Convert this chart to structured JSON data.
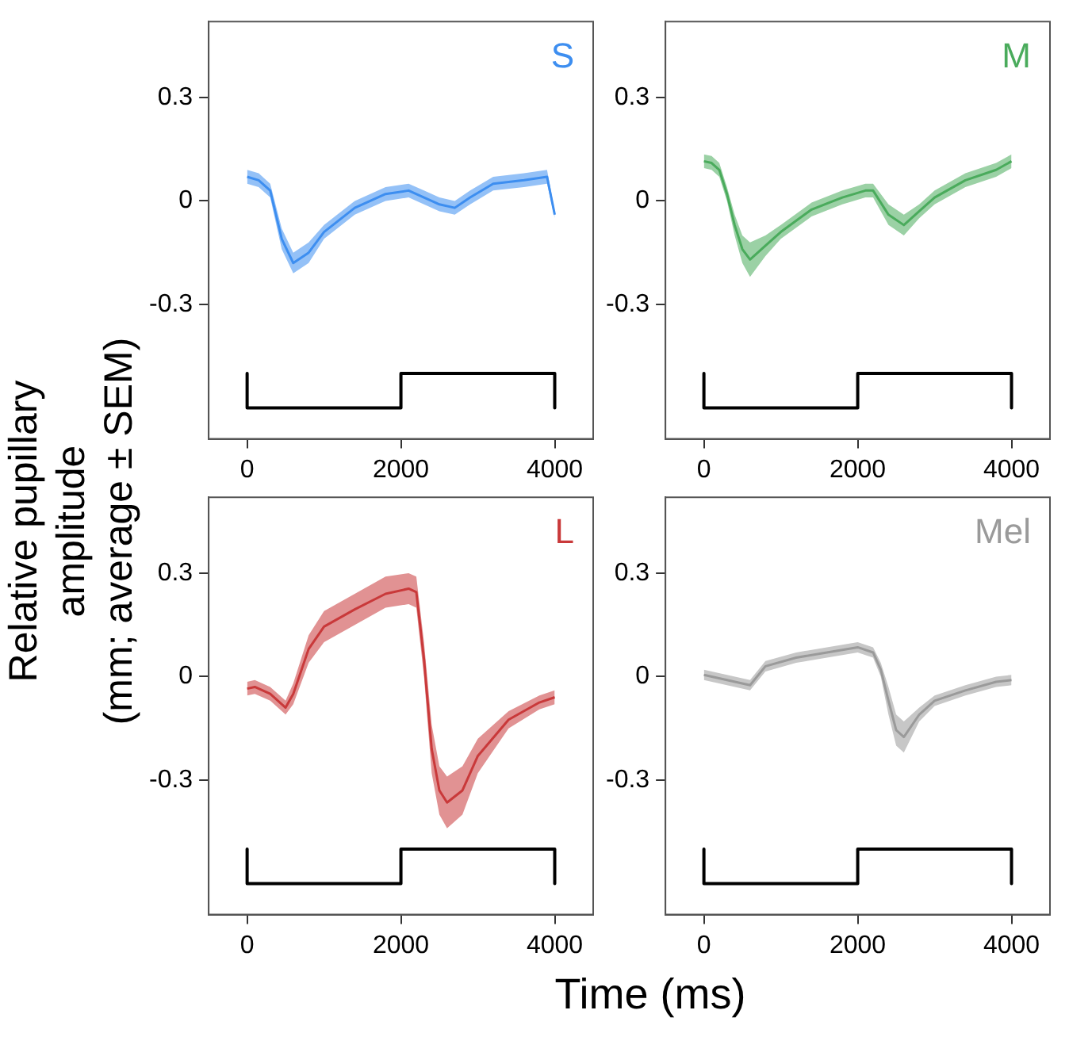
{
  "chart_data": [
    {
      "type": "line",
      "ylabel": "Relative pupillary amplitude\n(mm; average ± SEM)",
      "xlim": [
        -500,
        4500
      ],
      "ylim": [
        -0.69,
        0.52
      ],
      "xticks": [
        0,
        2000,
        4000
      ],
      "yticks": [
        -0.3,
        0,
        0.3
      ],
      "grid": false,
      "legend": false,
      "marker": "none",
      "series": [
        {
          "name": "S",
          "color": "#3d8ef0",
          "x": [
            0,
            150,
            300,
            450,
            600,
            800,
            1000,
            1400,
            1800,
            2100,
            2300,
            2500,
            2700,
            2900,
            3200,
            3600,
            3900,
            4000
          ],
          "values": [
            0.07,
            0.06,
            0.03,
            -0.11,
            -0.18,
            -0.15,
            -0.09,
            -0.02,
            0.02,
            0.03,
            0.01,
            -0.01,
            -0.02,
            0.01,
            0.05,
            0.06,
            0.07,
            -0.04
          ],
          "lower": [
            0.05,
            0.04,
            0.01,
            -0.14,
            -0.21,
            -0.18,
            -0.11,
            -0.04,
            0.0,
            0.01,
            -0.01,
            -0.03,
            -0.04,
            -0.01,
            0.03,
            0.04,
            0.05,
            -0.05
          ],
          "upper": [
            0.09,
            0.08,
            0.05,
            -0.08,
            -0.15,
            -0.12,
            -0.07,
            0.0,
            0.04,
            0.05,
            0.03,
            0.01,
            0.0,
            0.03,
            0.07,
            0.08,
            0.09,
            -0.03
          ]
        },
        {
          "type": "line",
          "color": "#000000",
          "x": [
            0,
            0,
            2000,
            2000,
            4000,
            4000
          ],
          "values": [
            -0.5,
            -0.6,
            -0.6,
            -0.5,
            -0.5,
            -0.6
          ]
        }
      ]
    },
    {
      "type": "line",
      "xlim": [
        -500,
        4500
      ],
      "ylim": [
        -0.69,
        0.52
      ],
      "xticks": [
        0,
        2000,
        4000
      ],
      "yticks": [
        -0.3,
        0,
        0.3
      ],
      "grid": false,
      "legend": false,
      "marker": "none",
      "series": [
        {
          "name": "M",
          "color": "#4aab5c",
          "x": [
            0,
            100,
            200,
            300,
            400,
            500,
            600,
            800,
            1000,
            1400,
            1800,
            2100,
            2200,
            2400,
            2600,
            2800,
            3000,
            3400,
            3800,
            4000
          ],
          "values": [
            0.115,
            0.11,
            0.09,
            0.02,
            -0.07,
            -0.14,
            -0.17,
            -0.13,
            -0.09,
            -0.025,
            0.01,
            0.03,
            0.03,
            -0.04,
            -0.07,
            -0.03,
            0.01,
            0.06,
            0.09,
            0.115
          ],
          "lower": [
            0.095,
            0.09,
            0.07,
            0.0,
            -0.1,
            -0.18,
            -0.22,
            -0.16,
            -0.11,
            -0.045,
            -0.01,
            0.01,
            0.01,
            -0.07,
            -0.1,
            -0.05,
            -0.01,
            0.04,
            0.07,
            0.095
          ],
          "upper": [
            0.135,
            0.13,
            0.11,
            0.04,
            -0.04,
            -0.1,
            -0.12,
            -0.1,
            -0.07,
            -0.005,
            0.03,
            0.05,
            0.05,
            -0.01,
            -0.04,
            -0.01,
            0.03,
            0.08,
            0.11,
            0.135
          ]
        },
        {
          "type": "line",
          "color": "#000000",
          "x": [
            0,
            0,
            2000,
            2000,
            4000,
            4000
          ],
          "values": [
            -0.5,
            -0.6,
            -0.6,
            -0.5,
            -0.5,
            -0.6
          ]
        }
      ]
    },
    {
      "type": "line",
      "xlabel": "Time (ms)",
      "xlim": [
        -500,
        4500
      ],
      "ylim": [
        -0.69,
        0.52
      ],
      "xticks": [
        0,
        2000,
        4000
      ],
      "yticks": [
        -0.3,
        0,
        0.3
      ],
      "grid": false,
      "legend": false,
      "marker": "none",
      "series": [
        {
          "name": "L",
          "color": "#c9393a",
          "x": [
            0,
            100,
            300,
            500,
            600,
            800,
            1000,
            1400,
            1800,
            2100,
            2200,
            2300,
            2400,
            2500,
            2600,
            2800,
            3000,
            3400,
            3800,
            4000
          ],
          "values": [
            -0.035,
            -0.03,
            -0.05,
            -0.09,
            -0.05,
            0.08,
            0.145,
            0.195,
            0.24,
            0.255,
            0.245,
            0.05,
            -0.21,
            -0.33,
            -0.365,
            -0.33,
            -0.23,
            -0.125,
            -0.075,
            -0.06
          ],
          "lower": [
            -0.055,
            -0.05,
            -0.07,
            -0.11,
            -0.08,
            0.04,
            0.1,
            0.15,
            0.2,
            0.21,
            0.2,
            0.0,
            -0.28,
            -0.4,
            -0.44,
            -0.4,
            -0.28,
            -0.15,
            -0.095,
            -0.08
          ],
          "upper": [
            -0.015,
            -0.01,
            -0.03,
            -0.07,
            -0.02,
            0.12,
            0.19,
            0.24,
            0.29,
            0.3,
            0.29,
            0.1,
            -0.14,
            -0.26,
            -0.29,
            -0.26,
            -0.18,
            -0.1,
            -0.055,
            -0.04
          ]
        },
        {
          "type": "line",
          "color": "#000000",
          "x": [
            0,
            0,
            2000,
            2000,
            4000,
            4000
          ],
          "values": [
            -0.5,
            -0.6,
            -0.6,
            -0.5,
            -0.5,
            -0.6
          ]
        }
      ]
    },
    {
      "type": "line",
      "xlim": [
        -500,
        4500
      ],
      "ylim": [
        -0.69,
        0.52
      ],
      "xticks": [
        0,
        2000,
        4000
      ],
      "yticks": [
        -0.3,
        0,
        0.3
      ],
      "grid": false,
      "legend": false,
      "marker": "none",
      "series": [
        {
          "name": "Mel",
          "color": "#9a9a9a",
          "x": [
            0,
            300,
            600,
            800,
            1200,
            1600,
            2000,
            2200,
            2300,
            2400,
            2500,
            2600,
            2800,
            3000,
            3400,
            3800,
            4000
          ],
          "values": [
            0.005,
            -0.01,
            -0.025,
            0.03,
            0.055,
            0.07,
            0.085,
            0.07,
            0.02,
            -0.07,
            -0.155,
            -0.175,
            -0.11,
            -0.07,
            -0.04,
            -0.015,
            -0.01
          ],
          "lower": [
            -0.01,
            -0.025,
            -0.04,
            0.015,
            0.04,
            0.055,
            0.07,
            0.055,
            0.0,
            -0.11,
            -0.2,
            -0.22,
            -0.13,
            -0.085,
            -0.055,
            -0.03,
            -0.025
          ],
          "upper": [
            0.02,
            0.005,
            -0.01,
            0.045,
            0.07,
            0.085,
            0.1,
            0.085,
            0.04,
            -0.03,
            -0.11,
            -0.13,
            -0.09,
            -0.055,
            -0.025,
            0.0,
            0.005
          ]
        },
        {
          "type": "line",
          "color": "#000000",
          "x": [
            0,
            0,
            2000,
            2000,
            4000,
            4000
          ],
          "values": [
            -0.5,
            -0.6,
            -0.6,
            -0.5,
            -0.5,
            -0.6
          ]
        }
      ]
    }
  ]
}
